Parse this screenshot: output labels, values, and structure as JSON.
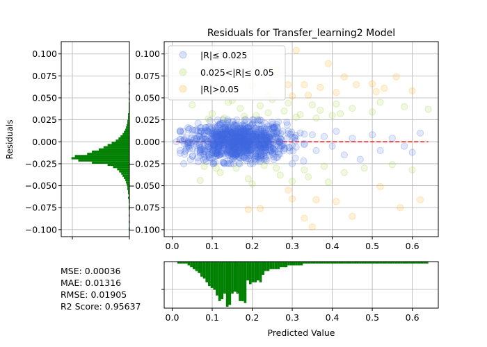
{
  "chart_data": [
    {
      "id": "main_scatter",
      "type": "scatter",
      "title": "Residuals for Transfer_learning2 Model",
      "xlim": [
        -0.02,
        0.665
      ],
      "ylim": [
        -0.108,
        0.114
      ],
      "x_ticks": [
        0.0,
        0.1,
        0.2,
        0.3,
        0.4,
        0.5,
        0.6
      ],
      "x_tick_labels": [
        "0.0",
        "0.1",
        "0.2",
        "0.3",
        "0.4",
        "0.5",
        "0.6"
      ],
      "y_ticks": [
        -0.1,
        -0.075,
        -0.05,
        -0.025,
        0.0,
        0.025,
        0.05,
        0.075,
        0.1
      ],
      "y_tick_labels": [
        "−0.100",
        "−0.075",
        "−0.050",
        "−0.025",
        "0.000",
        "0.025",
        "0.050",
        "0.075",
        "0.100"
      ],
      "grid": true,
      "legend_placement": "top-left",
      "reference_line": {
        "y": 0.0,
        "x_range": [
          0.01,
          0.64
        ],
        "color": "#e31a1c",
        "style": "dashed"
      },
      "series": [
        {
          "name": "|R|≤ 0.025",
          "color": "#4169e1",
          "points": [
            [
              0.07,
              0.003
            ],
            [
              0.08,
              -0.005
            ],
            [
              0.09,
              0.012
            ],
            [
              0.1,
              -0.012
            ],
            [
              0.11,
              0.006
            ],
            [
              0.12,
              -0.002
            ],
            [
              0.13,
              0.015
            ],
            [
              0.14,
              -0.008
            ],
            [
              0.15,
              0.01
            ],
            [
              0.16,
              -0.015
            ],
            [
              0.17,
              0.004
            ],
            [
              0.18,
              0.018
            ],
            [
              0.19,
              -0.006
            ],
            [
              0.2,
              0.008
            ],
            [
              0.21,
              -0.01
            ],
            [
              0.22,
              0.014
            ],
            [
              0.23,
              -0.003
            ],
            [
              0.24,
              0.006
            ],
            [
              0.25,
              -0.012
            ],
            [
              0.26,
              0.01
            ],
            [
              0.12,
              0.02
            ],
            [
              0.15,
              -0.02
            ],
            [
              0.18,
              -0.018
            ],
            [
              0.1,
              0.016
            ],
            [
              0.08,
              0.01
            ],
            [
              0.06,
              -0.004
            ],
            [
              0.05,
              0.008
            ],
            [
              0.04,
              -0.002
            ],
            [
              0.03,
              0.003
            ],
            [
              0.14,
              0.005
            ],
            [
              0.16,
              0.012
            ],
            [
              0.2,
              0.02
            ],
            [
              0.22,
              -0.016
            ],
            [
              0.24,
              0.018
            ],
            [
              0.27,
              0.004
            ],
            [
              0.28,
              -0.008
            ],
            [
              0.29,
              0.012
            ],
            [
              0.3,
              0.005
            ],
            [
              0.31,
              -0.006
            ],
            [
              0.32,
              0.01
            ],
            [
              0.33,
              -0.002
            ],
            [
              0.35,
              0.008
            ],
            [
              0.36,
              -0.01
            ],
            [
              0.38,
              0.006
            ],
            [
              0.4,
              -0.005
            ],
            [
              0.41,
              0.012
            ],
            [
              0.43,
              -0.015
            ],
            [
              0.45,
              0.004
            ],
            [
              0.47,
              -0.02
            ],
            [
              0.5,
              0.008
            ],
            [
              0.52,
              -0.01
            ],
            [
              0.55,
              0.004
            ],
            [
              0.58,
              -0.005
            ],
            [
              0.6,
              -0.012
            ],
            [
              0.62,
              0.01
            ],
            [
              0.01,
              0.0
            ],
            [
              0.11,
              -0.016
            ],
            [
              0.13,
              -0.01
            ],
            [
              0.17,
              -0.012
            ],
            [
              0.19,
              0.016
            ],
            [
              0.21,
              0.002
            ],
            [
              0.23,
              0.016
            ],
            [
              0.25,
              0.02
            ],
            [
              0.26,
              -0.018
            ],
            [
              0.09,
              -0.008
            ],
            [
              0.07,
              -0.012
            ]
          ],
          "cluster": {
            "n": 950,
            "x_mean": 0.165,
            "x_sd": 0.06,
            "x_range": [
              0.02,
              0.33
            ],
            "abs_limit": 0.025,
            "y_sd": 0.011
          }
        },
        {
          "name": "0.025<|R|≤ 0.05",
          "color": "#9acd32",
          "points": [
            [
              0.05,
              0.042
            ],
            [
              0.08,
              -0.028
            ],
            [
              0.1,
              0.032
            ],
            [
              0.12,
              -0.035
            ],
            [
              0.14,
              0.045
            ],
            [
              0.16,
              -0.03
            ],
            [
              0.17,
              0.038
            ],
            [
              0.19,
              -0.042
            ],
            [
              0.21,
              0.03
            ],
            [
              0.23,
              -0.027
            ],
            [
              0.25,
              0.048
            ],
            [
              0.27,
              -0.038
            ],
            [
              0.28,
              0.035
            ],
            [
              0.3,
              -0.045
            ],
            [
              0.31,
              0.028
            ],
            [
              0.33,
              -0.032
            ],
            [
              0.35,
              0.042
            ],
            [
              0.37,
              0.036
            ],
            [
              0.38,
              -0.028
            ],
            [
              0.4,
              0.03
            ],
            [
              0.41,
              0.043
            ],
            [
              0.43,
              -0.035
            ],
            [
              0.45,
              0.038
            ],
            [
              0.48,
              -0.03
            ],
            [
              0.5,
              0.034
            ],
            [
              0.52,
              0.045
            ],
            [
              0.55,
              -0.026
            ],
            [
              0.58,
              0.04
            ],
            [
              0.6,
              -0.032
            ],
            [
              0.64,
              0.037
            ],
            [
              0.07,
              -0.044
            ],
            [
              0.13,
              0.027
            ],
            [
              0.15,
              0.047
            ],
            [
              0.18,
              0.029
            ],
            [
              0.2,
              -0.048
            ],
            [
              0.22,
              0.041
            ],
            [
              0.24,
              0.033
            ],
            [
              0.26,
              -0.03
            ],
            [
              0.29,
              0.044
            ],
            [
              0.32,
              0.031
            ],
            [
              0.34,
              -0.04
            ],
            [
              0.36,
              0.027
            ],
            [
              0.39,
              -0.046
            ],
            [
              0.42,
              0.032
            ],
            [
              0.11,
              -0.03
            ],
            [
              0.09,
              0.026
            ]
          ]
        },
        {
          "name": "|R|>0.05",
          "color": "#ffa500",
          "points": [
            [
              0.31,
              0.104
            ],
            [
              0.39,
              0.089
            ],
            [
              0.26,
              0.082
            ],
            [
              0.29,
              0.065
            ],
            [
              0.33,
              0.065
            ],
            [
              0.43,
              0.074
            ],
            [
              0.46,
              0.065
            ],
            [
              0.5,
              0.066
            ],
            [
              0.51,
              0.057
            ],
            [
              0.53,
              0.061
            ],
            [
              0.3,
              0.052
            ],
            [
              0.34,
              0.053
            ],
            [
              0.37,
              0.062
            ],
            [
              0.41,
              0.056
            ],
            [
              0.56,
              0.074
            ],
            [
              0.6,
              0.058
            ],
            [
              0.29,
              -0.055
            ],
            [
              0.3,
              -0.065
            ],
            [
              0.36,
              -0.066
            ],
            [
              0.41,
              -0.068
            ],
            [
              0.19,
              -0.077
            ],
            [
              0.22,
              -0.076
            ],
            [
              0.33,
              -0.087
            ],
            [
              0.35,
              -0.097
            ],
            [
              0.52,
              -0.051
            ],
            [
              0.62,
              -0.066
            ],
            [
              0.57,
              -0.075
            ],
            [
              0.2,
              0.064
            ],
            [
              0.24,
              0.053
            ],
            [
              0.45,
              -0.085
            ]
          ]
        }
      ]
    },
    {
      "id": "residual_hist",
      "type": "bar",
      "orientation": "horizontal",
      "ylabel": "Residuals",
      "bar_color": "#008000",
      "y_ticks": [
        -0.1,
        -0.075,
        -0.05,
        -0.025,
        0.0,
        0.025,
        0.05,
        0.075,
        0.1
      ],
      "y_tick_labels": [
        "−0.100",
        "−0.075",
        "−0.050",
        "−0.025",
        "0.000",
        "0.025",
        "0.050",
        "0.075",
        "0.100"
      ],
      "bin_start": -0.1,
      "bin_width": 0.0025,
      "counts": [
        1,
        0,
        0,
        1,
        0,
        0,
        1,
        0,
        0,
        1,
        1,
        0,
        1,
        1,
        2,
        1,
        2,
        2,
        3,
        3,
        4,
        5,
        6,
        8,
        10,
        12,
        15,
        18,
        24,
        32,
        55,
        75,
        85,
        80,
        62,
        55,
        45,
        38,
        32,
        26,
        20,
        16,
        13,
        10,
        8,
        6,
        5,
        4,
        3,
        3,
        2,
        2,
        2,
        1,
        1,
        1,
        1,
        1,
        0,
        1,
        0,
        0,
        1,
        0,
        0,
        0,
        1,
        0,
        0,
        0,
        0,
        0,
        0,
        0,
        0,
        0,
        0,
        0,
        0,
        0
      ],
      "count_max": 100
    },
    {
      "id": "prediction_hist",
      "type": "bar",
      "orientation": "vertical",
      "xlabel": "Predicted Value",
      "bar_color": "#008000",
      "x_ticks": [
        0.0,
        0.1,
        0.2,
        0.3,
        0.4,
        0.5,
        0.6
      ],
      "x_tick_labels": [
        "0.0",
        "0.1",
        "0.2",
        "0.3",
        "0.4",
        "0.5",
        "0.6"
      ],
      "xlim": [
        -0.02,
        0.665
      ],
      "bin_start": 0.0,
      "bin_width": 0.0064,
      "counts": [
        0,
        0,
        1,
        1,
        1,
        1,
        2,
        3,
        4,
        5,
        6,
        8,
        9,
        11,
        13,
        14,
        15,
        18,
        21,
        20,
        17,
        24,
        23,
        17,
        16,
        17,
        21,
        21,
        22,
        10,
        12,
        11,
        11,
        10,
        11,
        7,
        5,
        5,
        4,
        4,
        4,
        4,
        3,
        3,
        3,
        2,
        2,
        2,
        2,
        2,
        2,
        1,
        1,
        1,
        1,
        1,
        1,
        1,
        1,
        1,
        1,
        1,
        1,
        1,
        1,
        1,
        1,
        1,
        1,
        1,
        1,
        1,
        1,
        1,
        1,
        1,
        1,
        1,
        1,
        1,
        1,
        1,
        1,
        1,
        1,
        1,
        1,
        1,
        1,
        1,
        1,
        1,
        1,
        1,
        1,
        1,
        1,
        1,
        1,
        1
      ],
      "count_max": 24
    }
  ],
  "metrics": {
    "mse": "MSE: 0.00036",
    "mae": "MAE: 0.01316",
    "rmse": "RMSE: 0.01905",
    "r2": "R2 Score: 0.95637"
  }
}
